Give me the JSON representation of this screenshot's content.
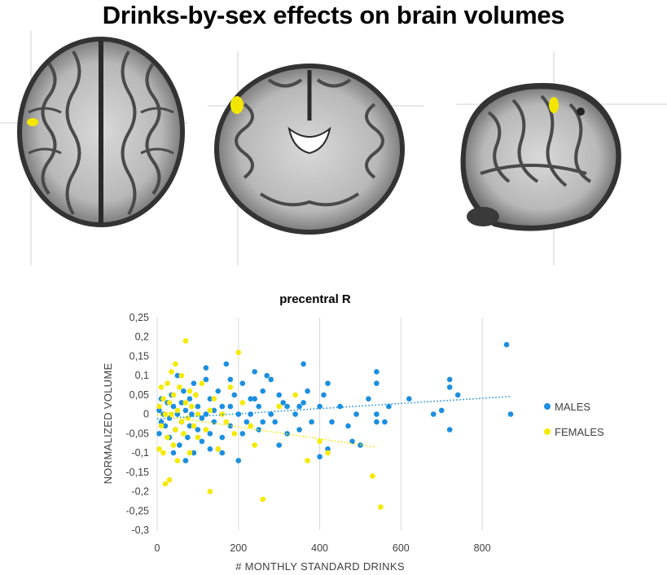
{
  "title": "Drinks-by-sex effects on brain volumes",
  "brain_views": [
    {
      "view": "axial",
      "highlight_color": "#f2e600"
    },
    {
      "view": "coronal",
      "highlight_color": "#f2e600"
    },
    {
      "view": "sagittal",
      "highlight_color": "#f2e600"
    }
  ],
  "chart_data": {
    "type": "scatter",
    "title": "precentral R",
    "xlabel": "# MONTHLY STANDARD DRINKS",
    "ylabel": "NORMALIZED VOLUME",
    "xlim": [
      0,
      900
    ],
    "ylim": [
      -0.3,
      0.25
    ],
    "x_ticks": [
      0,
      200,
      400,
      600,
      800
    ],
    "y_ticks": [
      0.25,
      0.2,
      0.15,
      0.1,
      0.05,
      0,
      -0.05,
      -0.1,
      -0.15,
      -0.2,
      -0.25,
      -0.3
    ],
    "x_tick_labels": [
      "0",
      "200",
      "400",
      "600",
      "800"
    ],
    "y_tick_labels": [
      "0,25",
      "0,2",
      "0,15",
      "0,1",
      "0,05",
      "0",
      "-0,05",
      "-0,1",
      "-0,15",
      "-0,2",
      "-0,25",
      "-0,3"
    ],
    "grid": "vertical",
    "legend_position": "right",
    "series": [
      {
        "name": "MALES",
        "color": "#1b8fe0",
        "trendline": [
          [
            0,
            -0.012
          ],
          [
            870,
            0.046
          ]
        ],
        "points": [
          [
            860,
            0.18
          ],
          [
            870,
            0.0
          ],
          [
            720,
            0.09
          ],
          [
            720,
            0.07
          ],
          [
            740,
            0.05
          ],
          [
            720,
            -0.04
          ],
          [
            700,
            0.01
          ],
          [
            680,
            0.0
          ],
          [
            620,
            0.04
          ],
          [
            570,
            0.02
          ],
          [
            560,
            -0.02
          ],
          [
            540,
            0.0
          ],
          [
            540,
            -0.02
          ],
          [
            520,
            0.04
          ],
          [
            540,
            0.08
          ],
          [
            540,
            0.11
          ],
          [
            500,
            -0.08
          ],
          [
            490,
            0.0
          ],
          [
            480,
            -0.07
          ],
          [
            470,
            -0.03
          ],
          [
            450,
            0.02
          ],
          [
            430,
            -0.02
          ],
          [
            420,
            0.08
          ],
          [
            420,
            -0.09
          ],
          [
            410,
            0.05
          ],
          [
            400,
            0.02
          ],
          [
            400,
            -0.11
          ],
          [
            380,
            -0.02
          ],
          [
            370,
            0.06
          ],
          [
            360,
            0.03
          ],
          [
            360,
            0.13
          ],
          [
            350,
            -0.04
          ],
          [
            340,
            0.0
          ],
          [
            320,
            -0.05
          ],
          [
            320,
            0.02
          ],
          [
            300,
            0.05
          ],
          [
            290,
            -0.02
          ],
          [
            280,
            0.09
          ],
          [
            270,
            0.1
          ],
          [
            260,
            0.06
          ],
          [
            250,
            0.02
          ],
          [
            250,
            -0.04
          ],
          [
            240,
            0.11
          ],
          [
            230,
            0.04
          ],
          [
            220,
            -0.02
          ],
          [
            210,
            0.08
          ],
          [
            200,
            0.0
          ],
          [
            200,
            -0.12
          ],
          [
            190,
            0.05
          ],
          [
            180,
            0.09
          ],
          [
            180,
            -0.03
          ],
          [
            170,
            0.13
          ],
          [
            160,
            0.02
          ],
          [
            160,
            -0.06
          ],
          [
            150,
            0.06
          ],
          [
            150,
            -0.09
          ],
          [
            140,
            0.01
          ],
          [
            140,
            -0.02
          ],
          [
            130,
            0.04
          ],
          [
            130,
            -0.05
          ],
          [
            120,
            0.0
          ],
          [
            120,
            0.09
          ],
          [
            110,
            -0.01
          ],
          [
            110,
            -0.07
          ],
          [
            100,
            0.02
          ],
          [
            100,
            -0.04
          ],
          [
            95,
            0.05
          ],
          [
            90,
            -0.1
          ],
          [
            90,
            0.08
          ],
          [
            85,
            0.0
          ],
          [
            80,
            -0.03
          ],
          [
            80,
            0.04
          ],
          [
            75,
            -0.06
          ],
          [
            70,
            0.01
          ],
          [
            70,
            -0.12
          ],
          [
            65,
            0.06
          ],
          [
            60,
            -0.02
          ],
          [
            60,
            0.03
          ],
          [
            55,
            -0.08
          ],
          [
            50,
            0.0
          ],
          [
            50,
            0.1
          ],
          [
            45,
            -0.04
          ],
          [
            40,
            0.02
          ],
          [
            40,
            -0.1
          ],
          [
            35,
            0.05
          ],
          [
            30,
            -0.01
          ],
          [
            30,
            -0.06
          ],
          [
            25,
            0.03
          ],
          [
            20,
            -0.03
          ],
          [
            15,
            0.0
          ],
          [
            10,
            0.04
          ],
          [
            10,
            -0.02
          ],
          [
            5,
            -0.05
          ],
          [
            5,
            0.01
          ],
          [
            160,
            -0.1
          ],
          [
            230,
            0.0
          ],
          [
            300,
            -0.08
          ],
          [
            350,
            0.02
          ],
          [
            240,
            0.04
          ],
          [
            180,
            0.02
          ],
          [
            130,
            -0.09
          ],
          [
            210,
            -0.05
          ],
          [
            260,
            -0.02
          ],
          [
            120,
            0.12
          ],
          [
            280,
            0.0
          ],
          [
            310,
            0.03
          ]
        ]
      },
      {
        "name": "FEMALES",
        "color": "#f5ea00",
        "trendline": [
          [
            0,
            -0.002
          ],
          [
            540,
            -0.085
          ]
        ],
        "points": [
          [
            550,
            -0.24
          ],
          [
            530,
            -0.16
          ],
          [
            420,
            -0.1
          ],
          [
            400,
            -0.07
          ],
          [
            370,
            -0.12
          ],
          [
            340,
            0.05
          ],
          [
            300,
            0.02
          ],
          [
            260,
            -0.22
          ],
          [
            240,
            -0.08
          ],
          [
            230,
            -0.03
          ],
          [
            210,
            0.03
          ],
          [
            200,
            0.16
          ],
          [
            190,
            -0.05
          ],
          [
            180,
            0.07
          ],
          [
            170,
            -0.02
          ],
          [
            160,
            0.0
          ],
          [
            150,
            -0.09
          ],
          [
            140,
            0.04
          ],
          [
            130,
            -0.2
          ],
          [
            130,
            0.01
          ],
          [
            120,
            -0.04
          ],
          [
            110,
            0.08
          ],
          [
            100,
            0.0
          ],
          [
            100,
            -0.06
          ],
          [
            95,
            0.05
          ],
          [
            90,
            -0.03
          ],
          [
            85,
            0.02
          ],
          [
            80,
            -0.1
          ],
          [
            80,
            0.06
          ],
          [
            75,
            -0.01
          ],
          [
            70,
            0.19
          ],
          [
            70,
            0.03
          ],
          [
            65,
            -0.05
          ],
          [
            60,
            0.1
          ],
          [
            60,
            -0.02
          ],
          [
            55,
            0.07
          ],
          [
            50,
            -0.12
          ],
          [
            50,
            0.01
          ],
          [
            45,
            0.13
          ],
          [
            45,
            -0.04
          ],
          [
            40,
            0.05
          ],
          [
            40,
            -0.08
          ],
          [
            35,
            0.0
          ],
          [
            35,
            0.11
          ],
          [
            30,
            -0.17
          ],
          [
            30,
            0.03
          ],
          [
            25,
            -0.06
          ],
          [
            25,
            0.08
          ],
          [
            20,
            -0.18
          ],
          [
            20,
            0.0
          ],
          [
            15,
            -0.1
          ],
          [
            15,
            0.04
          ],
          [
            10,
            0.07
          ],
          [
            10,
            -0.03
          ],
          [
            5,
            0.02
          ],
          [
            5,
            -0.09
          ]
        ]
      }
    ]
  }
}
